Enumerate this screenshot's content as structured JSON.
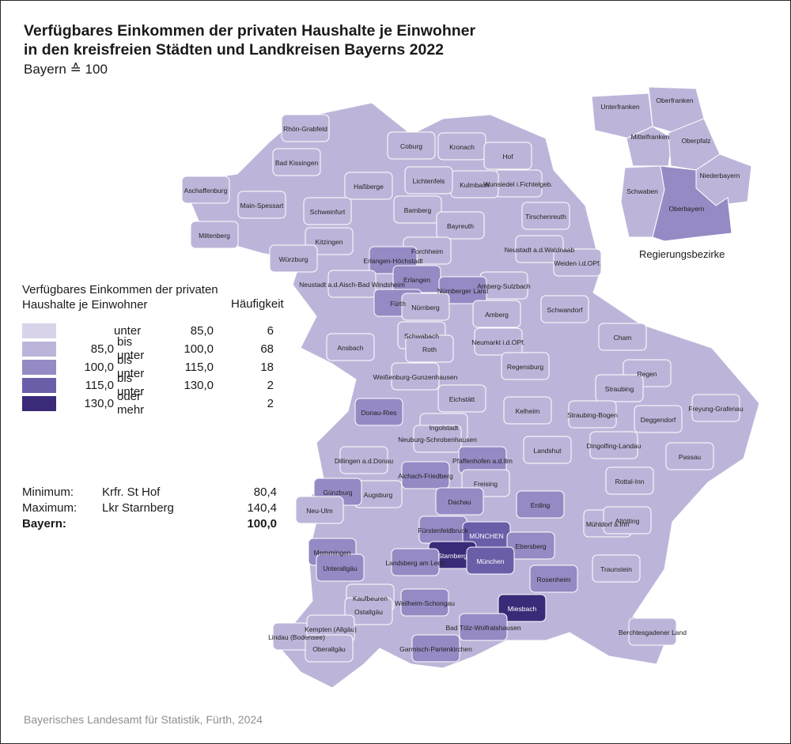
{
  "title": {
    "line1": "Verfügbares Einkommen der privaten Haushalte je Einwohner",
    "line2": "in den kreisfreien Städten und Landkreisen Bayerns 2022"
  },
  "subtitle": "Bayern ≙ 100",
  "colors": {
    "class1": "#d9d3ea",
    "class2": "#bdb5d9",
    "class3": "#958ac4",
    "class4": "#6b5ea9",
    "class5": "#3b2a78",
    "border": "#ffffff"
  },
  "legend": {
    "title_line1": "Verfügbares Einkommen der privaten",
    "title_line2": "Haushalte je Einwohner",
    "frequency_header": "Häufigkeit",
    "classes": [
      {
        "from": "",
        "op": "unter",
        "to": "85,0",
        "count": "6"
      },
      {
        "from": "85,0",
        "op": "bis unter",
        "to": "100,0",
        "count": "68"
      },
      {
        "from": "100,0",
        "op": "bis unter",
        "to": "115,0",
        "count": "18"
      },
      {
        "from": "115,0",
        "op": "bis unter",
        "to": "130,0",
        "count": "2"
      },
      {
        "from": "130,0",
        "op": "oder mehr",
        "to": "",
        "count": "2"
      }
    ]
  },
  "stats": {
    "minimum": {
      "label": "Minimum:",
      "name": "Krfr. St Hof",
      "value": "80,4"
    },
    "maximum": {
      "label": "Maximum:",
      "name": "Lkr Starnberg",
      "value": "140,4"
    },
    "bayern": {
      "label": "Bayern:",
      "value": "100,0"
    }
  },
  "inset": {
    "caption": "Regierungsbezirke",
    "labels": [
      "Unterfranken",
      "Oberfranken",
      "Mittelfranken",
      "Oberpfalz",
      "Niederbayern",
      "Schwaben",
      "Oberbayern"
    ]
  },
  "districts": [
    {
      "name": "Rhön-Grabfeld",
      "cls": 2
    },
    {
      "name": "Bad Kissingen",
      "cls": 2
    },
    {
      "name": "Coburg",
      "cls": 2
    },
    {
      "name": "Kronach",
      "cls": 2
    },
    {
      "name": "Hof",
      "cls": 2
    },
    {
      "name": "Wunsiedel i.Fichtelgeb.",
      "cls": 2
    },
    {
      "name": "Kulmbach",
      "cls": 2
    },
    {
      "name": "Lichtenfels",
      "cls": 2
    },
    {
      "name": "Haßberge",
      "cls": 2
    },
    {
      "name": "Aschaffenburg",
      "cls": 2
    },
    {
      "name": "Main-Spessart",
      "cls": 2
    },
    {
      "name": "Schweinfurt",
      "cls": 2
    },
    {
      "name": "Bamberg",
      "cls": 2
    },
    {
      "name": "Tirschenreuth",
      "cls": 2
    },
    {
      "name": "Bayreuth",
      "cls": 2
    },
    {
      "name": "Miltenberg",
      "cls": 2
    },
    {
      "name": "Kitzingen",
      "cls": 2
    },
    {
      "name": "Forchheim",
      "cls": 2
    },
    {
      "name": "Neustadt a.d.Waldnaab",
      "cls": 2
    },
    {
      "name": "Weiden i.d.OPf.",
      "cls": 2
    },
    {
      "name": "Würzburg",
      "cls": 2
    },
    {
      "name": "Erlangen-Höchstadt",
      "cls": 3
    },
    {
      "name": "Erlangen",
      "cls": 3
    },
    {
      "name": "Neustadt a.d.Aisch-Bad Windsheim",
      "cls": 2
    },
    {
      "name": "Amberg-Sulzbach",
      "cls": 2
    },
    {
      "name": "Fürth",
      "cls": 3
    },
    {
      "name": "Nürnberger Land",
      "cls": 3
    },
    {
      "name": "Nürnberg",
      "cls": 2
    },
    {
      "name": "Amberg",
      "cls": 2
    },
    {
      "name": "Schwandorf",
      "cls": 2
    },
    {
      "name": "Schwabach",
      "cls": 2
    },
    {
      "name": "Ansbach",
      "cls": 2
    },
    {
      "name": "Roth",
      "cls": 2
    },
    {
      "name": "Neumarkt i.d.OPf.",
      "cls": 2
    },
    {
      "name": "Cham",
      "cls": 2
    },
    {
      "name": "Regensburg",
      "cls": 2
    },
    {
      "name": "Weißenburg-Gunzenhausen",
      "cls": 2
    },
    {
      "name": "Regen",
      "cls": 2
    },
    {
      "name": "Straubing",
      "cls": 2
    },
    {
      "name": "Eichstätt",
      "cls": 2
    },
    {
      "name": "Kelheim",
      "cls": 2
    },
    {
      "name": "Donau-Ries",
      "cls": 3
    },
    {
      "name": "Freyung-Grafenau",
      "cls": 2
    },
    {
      "name": "Deggendorf",
      "cls": 2
    },
    {
      "name": "Straubing-Bogen",
      "cls": 2
    },
    {
      "name": "Ingolstadt",
      "cls": 2
    },
    {
      "name": "Neuburg-Schrobenhausen",
      "cls": 2
    },
    {
      "name": "Landshut",
      "cls": 2
    },
    {
      "name": "Dingolfing-Landau",
      "cls": 2
    },
    {
      "name": "Passau",
      "cls": 2
    },
    {
      "name": "Pfaffenhofen a.d.Ilm",
      "cls": 3
    },
    {
      "name": "Dillingen a.d.Donau",
      "cls": 2
    },
    {
      "name": "Aichach-Friedberg",
      "cls": 3
    },
    {
      "name": "Freising",
      "cls": 2
    },
    {
      "name": "Rottal-Inn",
      "cls": 2
    },
    {
      "name": "Augsburg",
      "cls": 2
    },
    {
      "name": "Günzburg",
      "cls": 3
    },
    {
      "name": "Dachau",
      "cls": 3
    },
    {
      "name": "Erding",
      "cls": 3
    },
    {
      "name": "Neu-Ulm",
      "cls": 2
    },
    {
      "name": "Fürstenfeldbruck",
      "cls": 3
    },
    {
      "name": "MÜNCHEN",
      "cls": 4
    },
    {
      "name": "Mühldorf a.Inn",
      "cls": 2
    },
    {
      "name": "Altötting",
      "cls": 2
    },
    {
      "name": "Memmingen",
      "cls": 3
    },
    {
      "name": "Ebersberg",
      "cls": 3
    },
    {
      "name": "Starnberg",
      "cls": 5
    },
    {
      "name": "München",
      "cls": 4
    },
    {
      "name": "Unterallgäu",
      "cls": 3
    },
    {
      "name": "Landsberg am Lech",
      "cls": 3
    },
    {
      "name": "Traunstein",
      "cls": 2
    },
    {
      "name": "Rosenheim",
      "cls": 3
    },
    {
      "name": "Kaufbeuren",
      "cls": 2
    },
    {
      "name": "Weilheim-Schongau",
      "cls": 3
    },
    {
      "name": "Miesbach",
      "cls": 5
    },
    {
      "name": "Ostallgäu",
      "cls": 2
    },
    {
      "name": "Bad Tölz-Wolfratshausen",
      "cls": 3
    },
    {
      "name": "Berchtesgadener Land",
      "cls": 2
    },
    {
      "name": "Lindau (Bodensee)",
      "cls": 2
    },
    {
      "name": "Kempten (Allgäu)",
      "cls": 2
    },
    {
      "name": "Oberallgäu",
      "cls": 2
    },
    {
      "name": "Garmisch-Partenkirchen",
      "cls": 3
    }
  ],
  "source": "Bayerisches Landesamt für Statistik, Fürth, 2024"
}
